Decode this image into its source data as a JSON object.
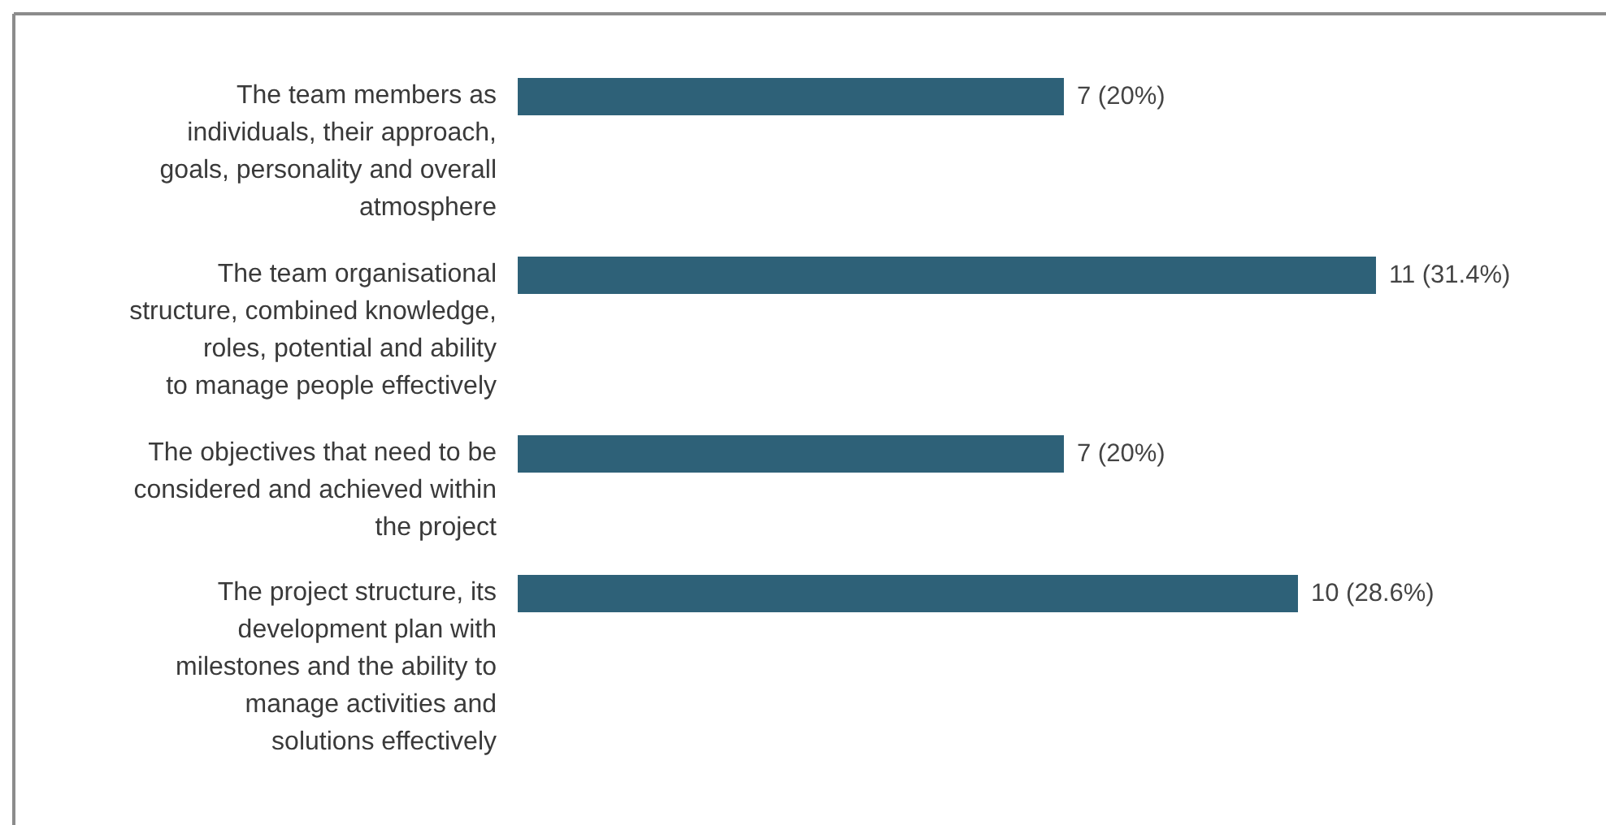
{
  "chart_data": {
    "type": "bar",
    "orientation": "horizontal",
    "categories": [
      "The team members as\nindividuals, their approach,\ngoals, personality and overall\natmosphere",
      "The team organisational\nstructure, combined knowledge,\nroles, potential and ability\nto manage people effectively",
      "The objectives that need to be\nconsidered and achieved within\nthe project",
      "The project structure, its\ndevelopment plan with\nmilestones and the ability to\nmanage activities and\nsolutions effectively"
    ],
    "values": [
      7,
      11,
      7,
      10
    ],
    "value_labels": [
      "7 (20%)",
      "11 (31.4%)",
      "7 (20%)",
      "10 (28.6%)"
    ],
    "color": "#2e6178"
  }
}
